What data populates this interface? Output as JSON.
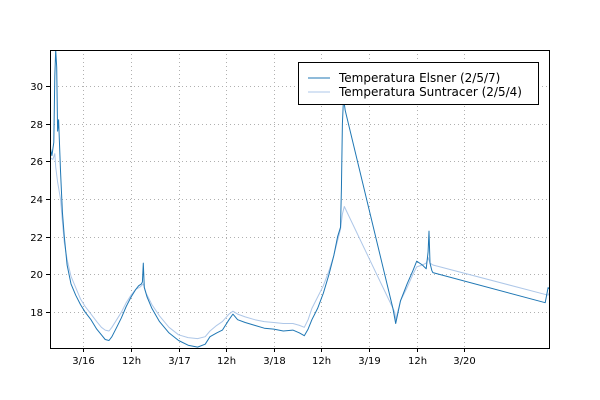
{
  "chart_data": {
    "type": "line",
    "title": "",
    "xlabel": "",
    "ylabel": "",
    "xlim": [
      -0.35,
      4.9
    ],
    "ylim": [
      16.1,
      31.9
    ],
    "grid": true,
    "legend_position": "top-right",
    "x_axis_note": "x in days counted from 3/16 00:00",
    "x_ticks": [
      {
        "x": 0.0,
        "label": "3/16"
      },
      {
        "x": 0.5,
        "label": "12h"
      },
      {
        "x": 1.0,
        "label": "3/17"
      },
      {
        "x": 1.5,
        "label": "12h"
      },
      {
        "x": 2.0,
        "label": "3/18"
      },
      {
        "x": 2.5,
        "label": "12h"
      },
      {
        "x": 3.0,
        "label": "3/19"
      },
      {
        "x": 3.5,
        "label": "12h"
      },
      {
        "x": 4.0,
        "label": "3/20"
      }
    ],
    "y_ticks": [
      {
        "y": 18,
        "label": "18"
      },
      {
        "y": 20,
        "label": "20"
      },
      {
        "y": 22,
        "label": "22"
      },
      {
        "y": 24,
        "label": "24"
      },
      {
        "y": 26,
        "label": "26"
      },
      {
        "y": 28,
        "label": "28"
      },
      {
        "y": 30,
        "label": "30"
      }
    ],
    "series": [
      {
        "name": "Temperatura Elsner (2/5/7)",
        "color": "#1f77b4",
        "points": [
          [
            -0.35,
            26.8
          ],
          [
            -0.33,
            26.3
          ],
          [
            -0.31,
            27.0
          ],
          [
            -0.3,
            30.5
          ],
          [
            -0.29,
            31.9
          ],
          [
            -0.28,
            31.0
          ],
          [
            -0.27,
            27.6
          ],
          [
            -0.26,
            28.2
          ],
          [
            -0.24,
            25.5
          ],
          [
            -0.22,
            23.3
          ],
          [
            -0.2,
            22.0
          ],
          [
            -0.17,
            20.5
          ],
          [
            -0.13,
            19.5
          ],
          [
            -0.08,
            18.9
          ],
          [
            -0.03,
            18.4
          ],
          [
            0.02,
            18.0
          ],
          [
            0.08,
            17.6
          ],
          [
            0.14,
            17.1
          ],
          [
            0.19,
            16.8
          ],
          [
            0.23,
            16.55
          ],
          [
            0.27,
            16.5
          ],
          [
            0.3,
            16.7
          ],
          [
            0.35,
            17.2
          ],
          [
            0.4,
            17.7
          ],
          [
            0.45,
            18.3
          ],
          [
            0.5,
            18.8
          ],
          [
            0.55,
            19.2
          ],
          [
            0.58,
            19.4
          ],
          [
            0.61,
            19.5
          ],
          [
            0.62,
            19.6
          ],
          [
            0.63,
            20.6
          ],
          [
            0.64,
            19.3
          ],
          [
            0.67,
            18.8
          ],
          [
            0.72,
            18.2
          ],
          [
            0.8,
            17.5
          ],
          [
            0.9,
            16.9
          ],
          [
            1.0,
            16.5
          ],
          [
            1.1,
            16.25
          ],
          [
            1.2,
            16.15
          ],
          [
            1.28,
            16.3
          ],
          [
            1.33,
            16.7
          ],
          [
            1.4,
            16.9
          ],
          [
            1.46,
            17.05
          ],
          [
            1.53,
            17.6
          ],
          [
            1.57,
            17.9
          ],
          [
            1.62,
            17.6
          ],
          [
            1.7,
            17.45
          ],
          [
            1.8,
            17.3
          ],
          [
            1.9,
            17.15
          ],
          [
            2.0,
            17.1
          ],
          [
            2.1,
            17.0
          ],
          [
            2.2,
            17.05
          ],
          [
            2.27,
            16.9
          ],
          [
            2.32,
            16.75
          ],
          [
            2.36,
            17.1
          ],
          [
            2.4,
            17.6
          ],
          [
            2.46,
            18.2
          ],
          [
            2.52,
            19.0
          ],
          [
            2.58,
            20.0
          ],
          [
            2.63,
            21.0
          ],
          [
            2.67,
            22.0
          ],
          [
            2.7,
            22.5
          ],
          [
            2.71,
            24.5
          ],
          [
            2.72,
            28.0
          ],
          [
            2.73,
            29.1
          ],
          [
            2.74,
            29.05
          ],
          [
            2.75,
            28.7
          ],
          [
            3.25,
            18.2
          ],
          [
            3.28,
            17.4
          ],
          [
            3.33,
            18.6
          ],
          [
            3.4,
            19.5
          ],
          [
            3.46,
            20.2
          ],
          [
            3.5,
            20.7
          ],
          [
            3.56,
            20.5
          ],
          [
            3.6,
            20.3
          ],
          [
            3.62,
            21.2
          ],
          [
            3.63,
            22.3
          ],
          [
            3.64,
            20.6
          ],
          [
            3.66,
            20.2
          ],
          [
            3.67,
            20.1
          ],
          [
            4.85,
            18.5
          ],
          [
            4.88,
            19.3
          ],
          [
            4.9,
            19.2
          ]
        ]
      },
      {
        "name": "Temperatura Suntracer (2/5/4)",
        "color": "#aec7e8",
        "points": [
          [
            -0.35,
            26.2
          ],
          [
            -0.32,
            26.1
          ],
          [
            -0.3,
            26.4
          ],
          [
            -0.29,
            25.7
          ],
          [
            -0.27,
            24.9
          ],
          [
            -0.24,
            24.0
          ],
          [
            -0.22,
            22.8
          ],
          [
            -0.2,
            21.7
          ],
          [
            -0.17,
            20.8
          ],
          [
            -0.13,
            19.9
          ],
          [
            -0.08,
            19.3
          ],
          [
            -0.03,
            18.7
          ],
          [
            0.02,
            18.3
          ],
          [
            0.08,
            17.9
          ],
          [
            0.14,
            17.5
          ],
          [
            0.19,
            17.2
          ],
          [
            0.23,
            17.05
          ],
          [
            0.27,
            17.0
          ],
          [
            0.3,
            17.2
          ],
          [
            0.35,
            17.6
          ],
          [
            0.4,
            18.0
          ],
          [
            0.45,
            18.5
          ],
          [
            0.5,
            18.9
          ],
          [
            0.55,
            19.2
          ],
          [
            0.6,
            19.35
          ],
          [
            0.63,
            19.5
          ],
          [
            0.66,
            19.0
          ],
          [
            0.72,
            18.4
          ],
          [
            0.8,
            17.8
          ],
          [
            0.9,
            17.2
          ],
          [
            1.0,
            16.8
          ],
          [
            1.1,
            16.65
          ],
          [
            1.2,
            16.6
          ],
          [
            1.28,
            16.7
          ],
          [
            1.33,
            17.0
          ],
          [
            1.4,
            17.3
          ],
          [
            1.46,
            17.5
          ],
          [
            1.53,
            17.9
          ],
          [
            1.57,
            18.05
          ],
          [
            1.62,
            17.9
          ],
          [
            1.7,
            17.75
          ],
          [
            1.8,
            17.6
          ],
          [
            1.9,
            17.5
          ],
          [
            2.0,
            17.45
          ],
          [
            2.1,
            17.4
          ],
          [
            2.2,
            17.4
          ],
          [
            2.27,
            17.3
          ],
          [
            2.32,
            17.2
          ],
          [
            2.36,
            17.6
          ],
          [
            2.4,
            18.2
          ],
          [
            2.46,
            18.8
          ],
          [
            2.52,
            19.4
          ],
          [
            2.58,
            20.2
          ],
          [
            2.63,
            21.0
          ],
          [
            2.67,
            21.8
          ],
          [
            2.7,
            22.4
          ],
          [
            2.72,
            23.2
          ],
          [
            2.74,
            23.6
          ],
          [
            2.75,
            23.5
          ],
          [
            3.27,
            18.0
          ],
          [
            3.28,
            17.6
          ],
          [
            3.33,
            18.6
          ],
          [
            3.4,
            19.3
          ],
          [
            3.46,
            20.0
          ],
          [
            3.5,
            20.4
          ],
          [
            3.56,
            20.5
          ],
          [
            3.6,
            20.6
          ],
          [
            3.62,
            20.9
          ],
          [
            3.64,
            20.6
          ],
          [
            3.67,
            20.5
          ],
          [
            4.88,
            18.9
          ],
          [
            4.9,
            19.1
          ]
        ]
      }
    ]
  }
}
